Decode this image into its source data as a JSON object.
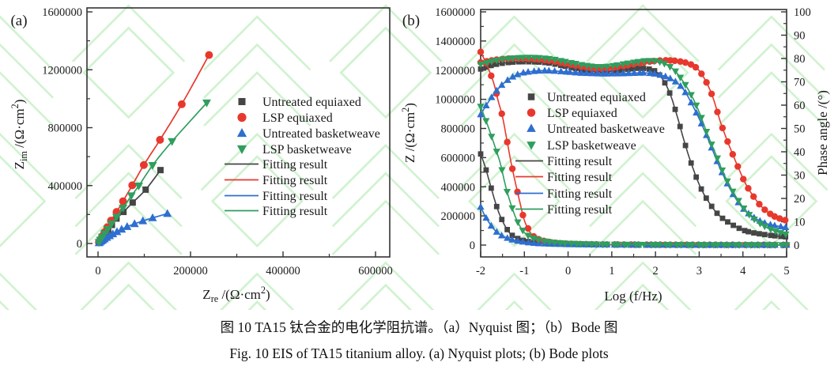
{
  "panels": {
    "a": {
      "label": "(a)"
    },
    "b": {
      "label": "(b)"
    }
  },
  "caption": {
    "line1_zh": "图 10 TA15 钛合金的电化学阻抗谱。（a）Nyquist 图；（b）Bode 图",
    "line2_en": "Fig. 10 EIS of TA15 titanium alloy. (a) Nyquist plots; (b) Bode plots"
  },
  "colors": {
    "black": "#454545",
    "red": "#e8382d",
    "blue": "#2e6ed0",
    "green": "#2f9e5e",
    "axis": "#333333",
    "text": "#1a1a1a",
    "watermark": "#9de49d"
  },
  "legend": {
    "marker_items": [
      {
        "label": "Untreated equiaxed",
        "color": "black",
        "marker": "square"
      },
      {
        "label": "LSP equiaxed",
        "color": "red",
        "marker": "circle"
      },
      {
        "label": "Untreated basketweave",
        "color": "blue",
        "marker": "triangle-up"
      },
      {
        "label": "LSP basketweave",
        "color": "green",
        "marker": "triangle-down"
      }
    ],
    "line_items": [
      {
        "label": "Fitting result",
        "color": "black"
      },
      {
        "label": "Fitting result",
        "color": "red"
      },
      {
        "label": "Fitting result",
        "color": "blue"
      },
      {
        "label": "Fitting result",
        "color": "green"
      }
    ]
  },
  "chart_data": [
    {
      "id": "nyquist",
      "type": "scatter",
      "xlabel_parts": [
        {
          "t": "Z"
        },
        {
          "t": "re",
          "style": "sub"
        },
        {
          "t": " /(Ω·cm"
        },
        {
          "t": "2",
          "style": "sup"
        },
        {
          "t": ")"
        }
      ],
      "ylabel_parts": [
        {
          "t": "Z"
        },
        {
          "t": "im",
          "style": "sub"
        },
        {
          "t": " /(Ω·cm"
        },
        {
          "t": "2",
          "style": "sup"
        },
        {
          "t": ")"
        }
      ],
      "xlim": [
        0,
        630000
      ],
      "ylim": [
        0,
        1600000
      ],
      "xticks": [
        0,
        200000,
        400000,
        600000
      ],
      "yticks": [
        0,
        400000,
        800000,
        1200000,
        1600000
      ],
      "grid": false,
      "legend_position": "center-right",
      "series": [
        {
          "name": "Untreated equiaxed",
          "color": "black",
          "marker": "square",
          "points": [
            [
              2000,
              6000
            ],
            [
              4000,
              14000
            ],
            [
              7000,
              26000
            ],
            [
              11000,
              42000
            ],
            [
              16000,
              64000
            ],
            [
              22000,
              92000
            ],
            [
              30000,
              128000
            ],
            [
              40000,
              172000
            ],
            [
              55000,
              218000
            ],
            [
              75000,
              283000
            ],
            [
              103000,
              372000
            ],
            [
              135000,
              507000
            ]
          ]
        },
        {
          "name": "LSP equiaxed",
          "color": "red",
          "marker": "circle",
          "points": [
            [
              2000,
              9000
            ],
            [
              5000,
              27000
            ],
            [
              9000,
              50000
            ],
            [
              14000,
              78000
            ],
            [
              20000,
              112000
            ],
            [
              28000,
              158000
            ],
            [
              40000,
              218000
            ],
            [
              54000,
              292000
            ],
            [
              74000,
              402000
            ],
            [
              99000,
              542000
            ],
            [
              134000,
              716000
            ],
            [
              181000,
              962000
            ],
            [
              240000,
              1302000
            ]
          ]
        },
        {
          "name": "Untreated basketweave",
          "color": "blue",
          "marker": "triangle-up",
          "points": [
            [
              2000,
              4000
            ],
            [
              4000,
              9000
            ],
            [
              7000,
              16000
            ],
            [
              10000,
              23000
            ],
            [
              14000,
              31000
            ],
            [
              19000,
              41000
            ],
            [
              25000,
              53000
            ],
            [
              32000,
              66000
            ],
            [
              41000,
              81000
            ],
            [
              51000,
              98000
            ],
            [
              63000,
              116000
            ],
            [
              79000,
              136000
            ],
            [
              97000,
              156000
            ],
            [
              118000,
              177000
            ],
            [
              150000,
              206000
            ]
          ]
        },
        {
          "name": "LSP basketweave",
          "color": "green",
          "marker": "triangle-down",
          "points": [
            [
              2000,
              8000
            ],
            [
              5000,
              24000
            ],
            [
              9000,
              44000
            ],
            [
              14000,
              68000
            ],
            [
              21000,
              98000
            ],
            [
              29000,
              135000
            ],
            [
              40000,
              182000
            ],
            [
              54000,
              245000
            ],
            [
              72000,
              330000
            ],
            [
              88000,
              398000
            ],
            [
              118000,
              540000
            ],
            [
              160000,
              705000
            ],
            [
              235000,
              972000
            ]
          ]
        }
      ]
    },
    {
      "id": "bode",
      "type": "line",
      "xlabel": "Log (f/Hz)",
      "ylabel_left_parts": [
        {
          "t": "Z /(Ω·cm"
        },
        {
          "t": "2",
          "style": "sup"
        },
        {
          "t": ")"
        }
      ],
      "ylabel_right": "Phase angle /(°)",
      "xlim": [
        -2,
        5
      ],
      "ylim_left": [
        0,
        1600000
      ],
      "ylim_right": [
        0,
        100
      ],
      "xticks": [
        -2,
        -1,
        0,
        1,
        2,
        3,
        4,
        5
      ],
      "yticks_left": [
        0,
        200000,
        400000,
        600000,
        800000,
        1000000,
        1200000,
        1400000,
        1600000
      ],
      "yticks_right": [
        0,
        10,
        20,
        30,
        40,
        50,
        60,
        70,
        80,
        90,
        100
      ],
      "grid": false,
      "legend_position": "center",
      "series": [
        {
          "name": "Untreated equiaxed",
          "color": "black",
          "marker": "square",
          "impedance": [
            [
              -2,
              625000
            ],
            [
              -1.9,
              540000
            ],
            [
              -1.8,
              435000
            ],
            [
              -1.7,
              330000
            ],
            [
              -1.6,
              235000
            ],
            [
              -1.5,
              165000
            ],
            [
              -1.4,
              110000
            ],
            [
              -1.3,
              72000
            ],
            [
              -1.15,
              45000
            ],
            [
              -1,
              30000
            ],
            [
              -0.8,
              19000
            ],
            [
              -0.5,
              11000
            ],
            [
              0,
              6000
            ],
            [
              0.5,
              4000
            ],
            [
              1,
              3000
            ],
            [
              2,
              1800
            ],
            [
              3.5,
              1000
            ],
            [
              5,
              700
            ]
          ],
          "phase": [
            [
              -2,
              75.5
            ],
            [
              -1.7,
              77.3
            ],
            [
              -1.3,
              78.4
            ],
            [
              -0.9,
              78.6
            ],
            [
              -0.5,
              78.2
            ],
            [
              -0.1,
              76.8
            ],
            [
              0.3,
              75.2
            ],
            [
              0.6,
              74.4
            ],
            [
              1,
              74.6
            ],
            [
              1.4,
              75.4
            ],
            [
              1.7,
              75.8
            ],
            [
              2,
              74.5
            ],
            [
              2.2,
              70
            ],
            [
              2.35,
              64
            ],
            [
              2.5,
              55
            ],
            [
              2.65,
              45
            ],
            [
              2.8,
              36
            ],
            [
              3,
              26
            ],
            [
              3.2,
              19
            ],
            [
              3.5,
              12
            ],
            [
              4,
              6.5
            ],
            [
              4.5,
              4.5
            ],
            [
              5,
              3.5
            ]
          ]
        },
        {
          "name": "LSP equiaxed",
          "color": "red",
          "marker": "circle",
          "impedance": [
            [
              -2,
              1325000
            ],
            [
              -1.85,
              1230000
            ],
            [
              -1.7,
              1110000
            ],
            [
              -1.6,
              990000
            ],
            [
              -1.5,
              880000
            ],
            [
              -1.4,
              720000
            ],
            [
              -1.3,
              560000
            ],
            [
              -1.2,
              420000
            ],
            [
              -1.1,
              290000
            ],
            [
              -1,
              170000
            ],
            [
              -0.9,
              105000
            ],
            [
              -0.8,
              62000
            ],
            [
              -0.6,
              32000
            ],
            [
              -0.3,
              16000
            ],
            [
              0,
              9000
            ],
            [
              0.5,
              5000
            ],
            [
              1,
              3500
            ],
            [
              2,
              2000
            ],
            [
              3.5,
              1200
            ],
            [
              5,
              800
            ]
          ],
          "phase": [
            [
              -2,
              78.3
            ],
            [
              -1.6,
              79.6
            ],
            [
              -1.2,
              80
            ],
            [
              -0.8,
              79.8
            ],
            [
              -0.4,
              79
            ],
            [
              0,
              77.6
            ],
            [
              0.4,
              76.2
            ],
            [
              0.7,
              75.6
            ],
            [
              1,
              76
            ],
            [
              1.4,
              77.2
            ],
            [
              1.8,
              78.5
            ],
            [
              2.2,
              79.2
            ],
            [
              2.6,
              78.6
            ],
            [
              2.9,
              76.5
            ],
            [
              3.1,
              72
            ],
            [
              3.3,
              64
            ],
            [
              3.5,
              52
            ],
            [
              3.7,
              42
            ],
            [
              3.9,
              33
            ],
            [
              4.1,
              25
            ],
            [
              4.4,
              17
            ],
            [
              4.7,
              12.5
            ],
            [
              5,
              10.5
            ]
          ]
        },
        {
          "name": "Untreated basketweave",
          "color": "blue",
          "marker": "triangle-up",
          "impedance": [
            [
              -2,
              262000
            ],
            [
              -1.9,
              200000
            ],
            [
              -1.8,
              150000
            ],
            [
              -1.7,
              110000
            ],
            [
              -1.6,
              82000
            ],
            [
              -1.5,
              62000
            ],
            [
              -1.35,
              44000
            ],
            [
              -1.2,
              31000
            ],
            [
              -1,
              21000
            ],
            [
              -0.8,
              14000
            ],
            [
              -0.5,
              9000
            ],
            [
              0,
              5000
            ],
            [
              0.5,
              3500
            ],
            [
              1,
              2500
            ],
            [
              2,
              1500
            ],
            [
              3.5,
              900
            ],
            [
              5,
              600
            ]
          ],
          "phase": [
            [
              -2,
              56
            ],
            [
              -1.8,
              62
            ],
            [
              -1.6,
              67
            ],
            [
              -1.4,
              70.5
            ],
            [
              -1.2,
              72.8
            ],
            [
              -1,
              74
            ],
            [
              -0.6,
              74.8
            ],
            [
              -0.2,
              74.5
            ],
            [
              0.3,
              73.8
            ],
            [
              0.8,
              73.5
            ],
            [
              1.3,
              73.6
            ],
            [
              1.8,
              73.8
            ],
            [
              2.2,
              72.5
            ],
            [
              2.5,
              69.5
            ],
            [
              2.7,
              65
            ],
            [
              2.9,
              58
            ],
            [
              3.1,
              50
            ],
            [
              3.3,
              41
            ],
            [
              3.5,
              32
            ],
            [
              3.8,
              21
            ],
            [
              4.1,
              14
            ],
            [
              4.5,
              9.5
            ],
            [
              5,
              7.5
            ]
          ]
        },
        {
          "name": "LSP basketweave",
          "color": "green",
          "marker": "triangle-down",
          "impedance": [
            [
              -2,
              950000
            ],
            [
              -1.85,
              830000
            ],
            [
              -1.7,
              700000
            ],
            [
              -1.55,
              560000
            ],
            [
              -1.45,
              430000
            ],
            [
              -1.35,
              320000
            ],
            [
              -1.2,
              190000
            ],
            [
              -1.05,
              105000
            ],
            [
              -0.9,
              62000
            ],
            [
              -0.7,
              38000
            ],
            [
              -0.4,
              20000
            ],
            [
              0,
              11000
            ],
            [
              0.5,
              6000
            ],
            [
              1,
              4000
            ],
            [
              2,
              2500
            ],
            [
              3,
              1500
            ],
            [
              4,
              1000
            ],
            [
              5,
              800
            ]
          ],
          "phase": [
            [
              -2,
              77.5
            ],
            [
              -1.6,
              79.3
            ],
            [
              -1.2,
              80.2
            ],
            [
              -0.8,
              80.4
            ],
            [
              -0.4,
              79.8
            ],
            [
              0,
              78.4
            ],
            [
              0.4,
              77
            ],
            [
              0.7,
              76.4
            ],
            [
              1,
              76.8
            ],
            [
              1.4,
              78
            ],
            [
              1.8,
              79
            ],
            [
              2.1,
              78.5
            ],
            [
              2.4,
              75.5
            ],
            [
              2.6,
              71
            ],
            [
              2.8,
              65
            ],
            [
              3,
              57
            ],
            [
              3.2,
              47
            ],
            [
              3.4,
              38
            ],
            [
              3.6,
              29
            ],
            [
              3.9,
              19
            ],
            [
              4.2,
              12
            ],
            [
              4.6,
              7
            ],
            [
              5,
              4.5
            ]
          ]
        }
      ]
    }
  ]
}
